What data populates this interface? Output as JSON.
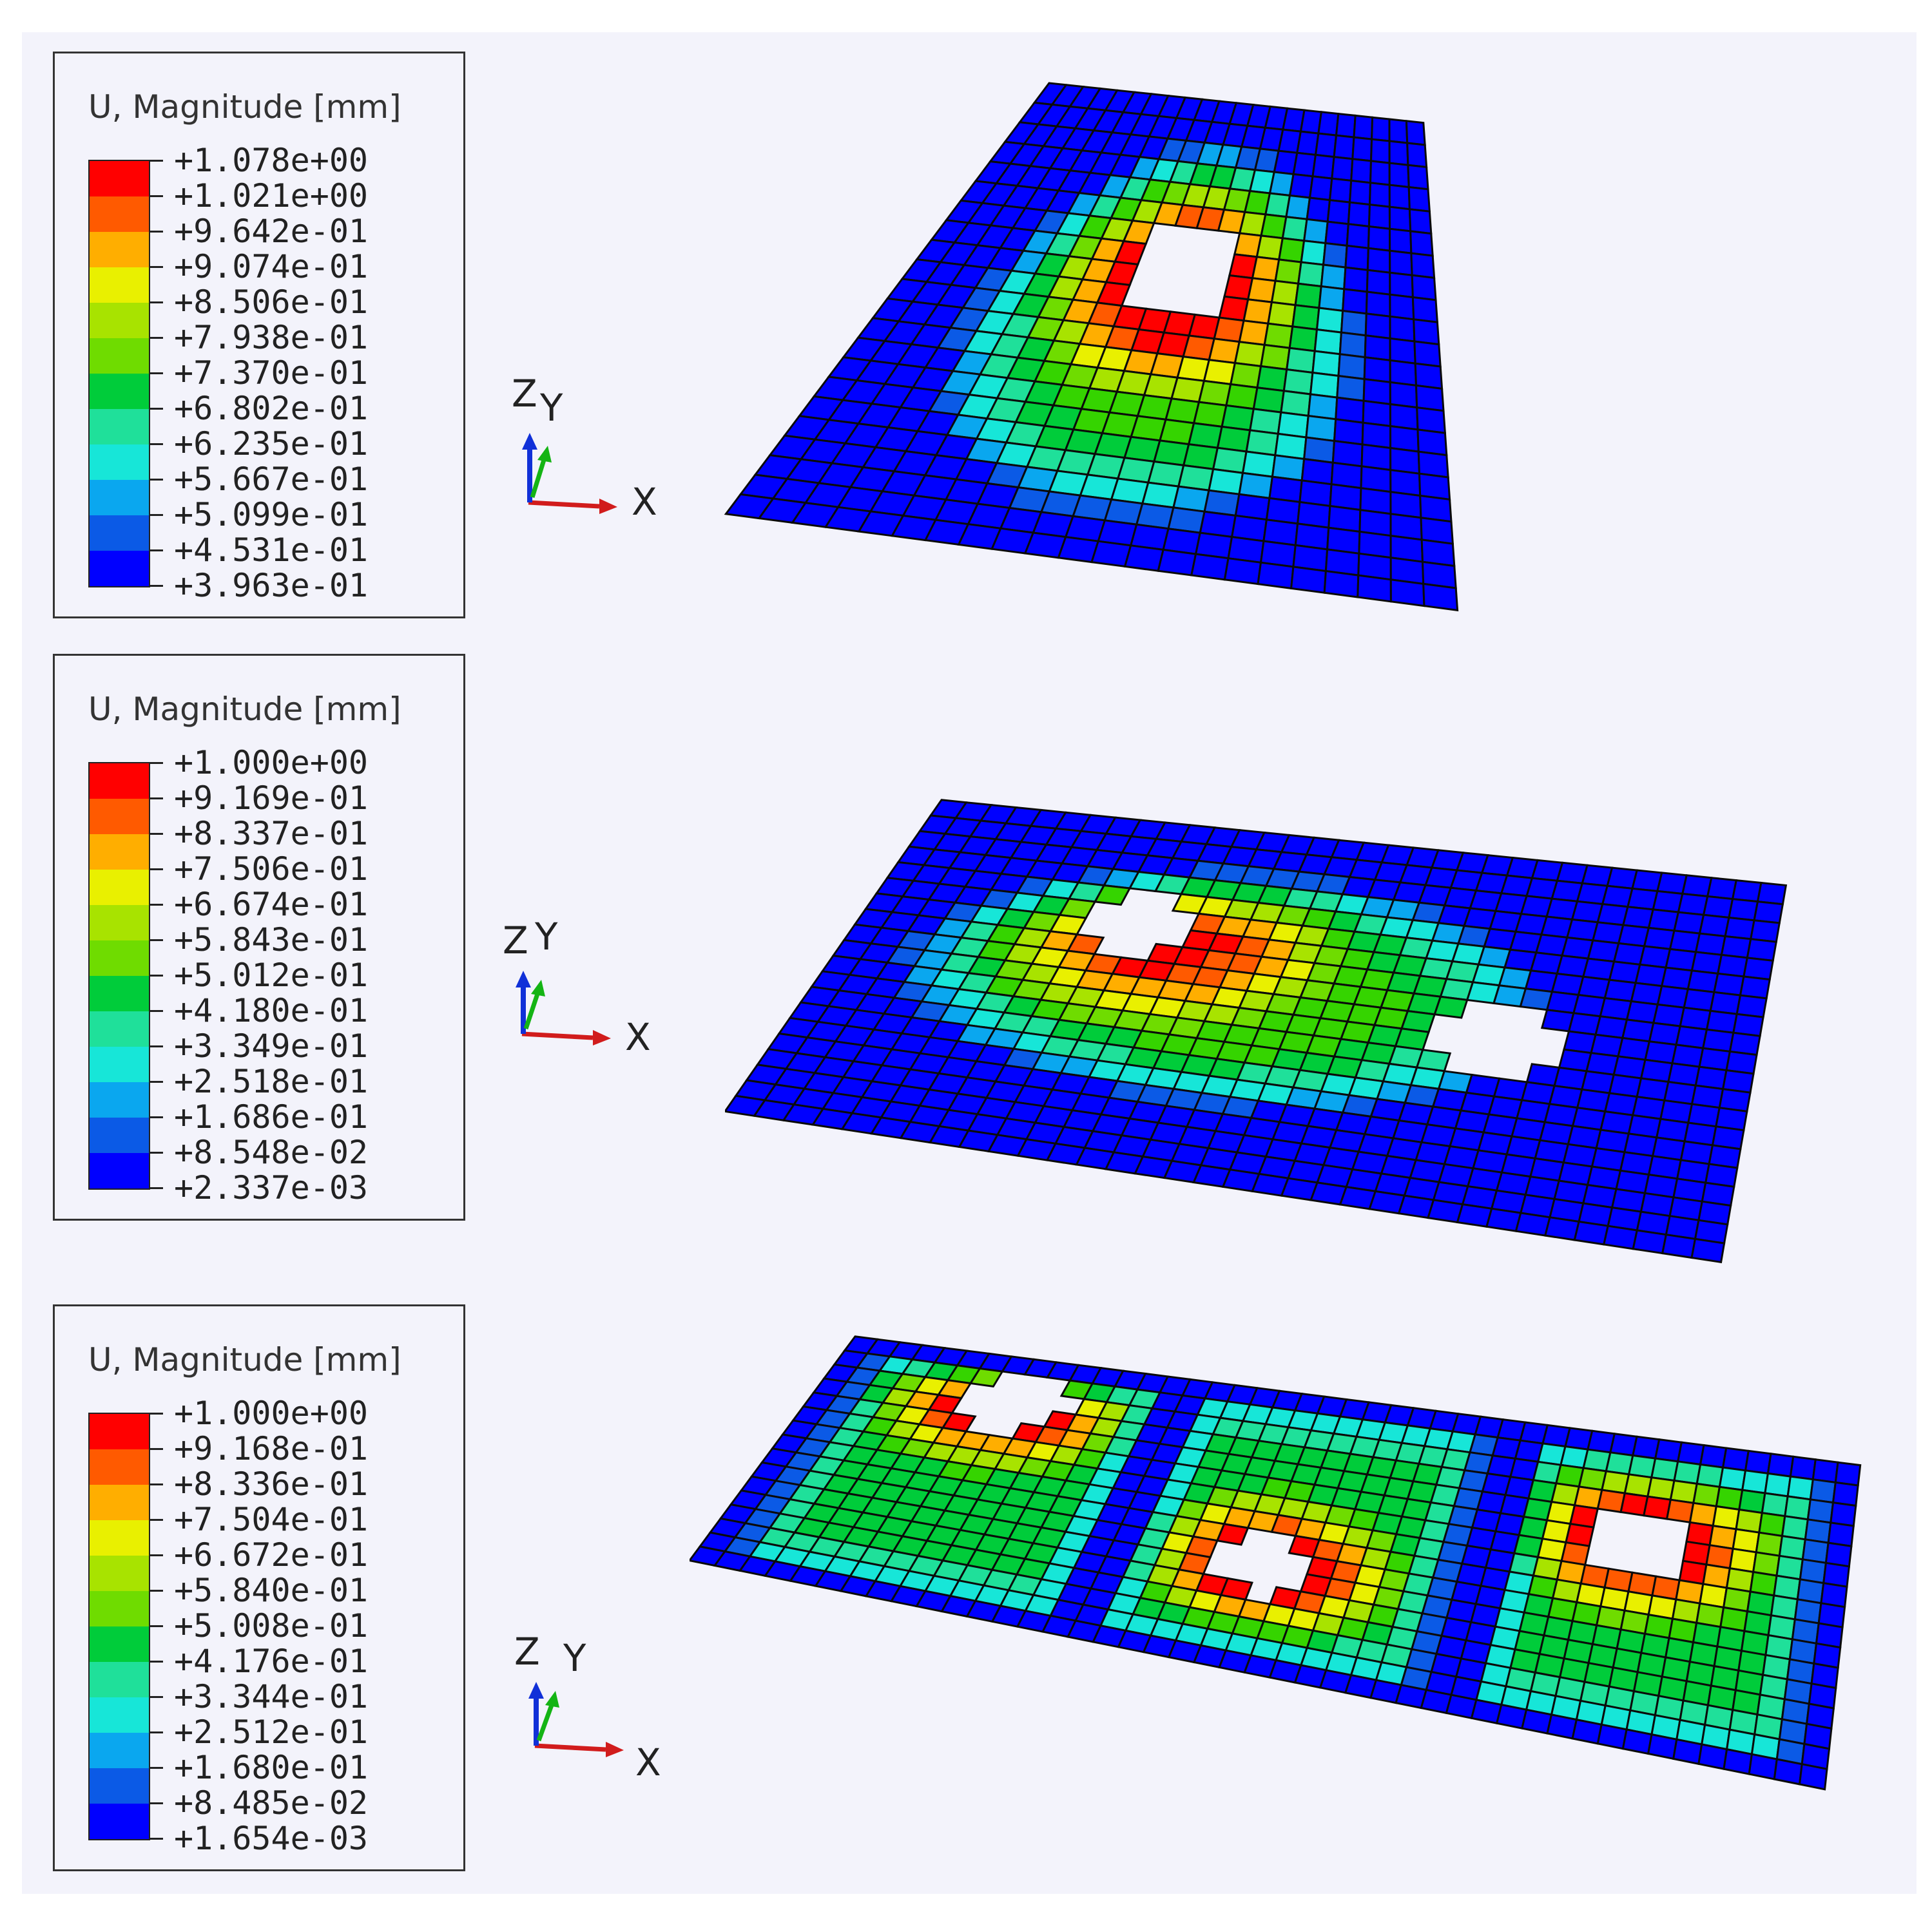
{
  "colors": {
    "background": "#f3f3fb",
    "contour_scale": [
      "#ff0000",
      "#ff5a00",
      "#ffae00",
      "#e9f000",
      "#a8e300",
      "#6fdc00",
      "#35d400",
      "#00cc3a",
      "#1fe09a",
      "#17e6d8",
      "#0aa7ef",
      "#0b5ae6",
      "#0000ff"
    ],
    "mesh": "#0a0a0a",
    "x_axis": "#d11c1c",
    "y_axis": "#14b414",
    "z_axis": "#1030d8"
  },
  "axes_labels": {
    "x": "X",
    "y": "Y",
    "z": "Z"
  },
  "panels": [
    {
      "name": "single-hole",
      "legend": {
        "title": "U, Magnitude [mm]",
        "values": [
          "+1.078e+00",
          "+1.021e+00",
          "+9.642e-01",
          "+9.074e-01",
          "+8.506e-01",
          "+7.938e-01",
          "+7.370e-01",
          "+6.802e-01",
          "+6.235e-01",
          "+5.667e-01",
          "+5.099e-01",
          "+4.531e-01",
          "+3.963e-01"
        ]
      },
      "plate": {
        "corners": [
          [
            0.4,
            0.05
          ],
          [
            0.84,
            0.12
          ],
          [
            0.88,
            0.98
          ],
          [
            0.02,
            0.81
          ]
        ],
        "cols": 22,
        "rows": 22,
        "mode": "single",
        "holes": [
          [
            0.5,
            0.36,
            0.11
          ]
        ],
        "dome": [
          0.5,
          0.5,
          0.36,
          0.42
        ]
      }
    },
    {
      "name": "two-holes",
      "legend": {
        "title": "U, Magnitude [mm]",
        "values": [
          "+1.000e+00",
          "+9.169e-01",
          "+8.337e-01",
          "+7.506e-01",
          "+6.674e-01",
          "+5.843e-01",
          "+5.012e-01",
          "+4.180e-01",
          "+3.349e-01",
          "+2.518e-01",
          "+1.686e-01",
          "+8.548e-02",
          "+2.337e-03"
        ]
      },
      "plate": {
        "corners": [
          [
            0.2,
            0.06
          ],
          [
            0.98,
            0.23
          ],
          [
            0.92,
            0.98
          ],
          [
            0.0,
            0.68
          ]
        ],
        "cols": 34,
        "rows": 20,
        "mode": "two",
        "holes": [
          [
            0.3,
            0.3,
            0.07
          ],
          [
            0.72,
            0.5,
            0.07
          ]
        ],
        "dome": [
          0.42,
          0.45,
          0.36,
          0.34
        ]
      }
    },
    {
      "name": "three-holes",
      "legend": {
        "title": "U, Magnitude [mm]",
        "values": [
          "+1.000e+00",
          "+9.168e-01",
          "+8.336e-01",
          "+7.504e-01",
          "+6.672e-01",
          "+5.840e-01",
          "+5.008e-01",
          "+4.176e-01",
          "+3.344e-01",
          "+2.512e-01",
          "+1.680e-01",
          "+8.485e-02",
          "+1.654e-03"
        ]
      },
      "plate": {
        "corners": [
          [
            0.14,
            0.02
          ],
          [
            0.99,
            0.29
          ],
          [
            0.96,
            0.97
          ],
          [
            0.0,
            0.49
          ]
        ],
        "cols": 45,
        "rows": 16,
        "mode": "three",
        "holes": [
          [
            0.18,
            0.18,
            0.055
          ],
          [
            0.47,
            0.62,
            0.05
          ],
          [
            0.8,
            0.33,
            0.055
          ]
        ],
        "dome": [
          0.5,
          0.5,
          0.5,
          0.5
        ]
      }
    }
  ]
}
